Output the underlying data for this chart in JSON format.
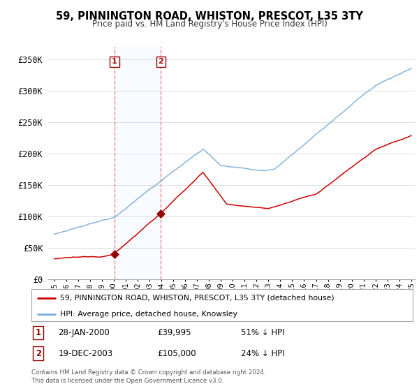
{
  "title": "59, PINNINGTON ROAD, WHISTON, PRESCOT, L35 3TY",
  "subtitle": "Price paid vs. HM Land Registry's House Price Index (HPI)",
  "ylim": [
    0,
    370000
  ],
  "yticks": [
    0,
    50000,
    100000,
    150000,
    200000,
    250000,
    300000,
    350000
  ],
  "ytick_labels": [
    "£0",
    "£50K",
    "£100K",
    "£150K",
    "£200K",
    "£250K",
    "£300K",
    "£350K"
  ],
  "sale1_year": 2000.074,
  "sale1_price": 39995,
  "sale1_label": "1",
  "sale1_date": "28-JAN-2000",
  "sale1_price_str": "£39,995",
  "sale1_hpi": "51% ↓ HPI",
  "sale2_year": 2003.962,
  "sale2_price": 105000,
  "sale2_label": "2",
  "sale2_date": "19-DEC-2003",
  "sale2_price_str": "£105,000",
  "sale2_hpi": "24% ↓ HPI",
  "legend_line1": "59, PINNINGTON ROAD, WHISTON, PRESCOT, L35 3TY (detached house)",
  "legend_line2": "HPI: Average price, detached house, Knowsley",
  "footer": "Contains HM Land Registry data © Crown copyright and database right 2024.\nThis data is licensed under the Open Government Licence v3.0.",
  "line_color_red": "#cc0000",
  "line_color_blue": "#7aaedc",
  "marker_color": "#990000",
  "vline_color": "#ee8888",
  "shade_color": "#ddeeff",
  "bg_color": "#ffffff",
  "grid_color": "#dddddd",
  "xlim_left": 1994.5,
  "xlim_right": 2025.3
}
